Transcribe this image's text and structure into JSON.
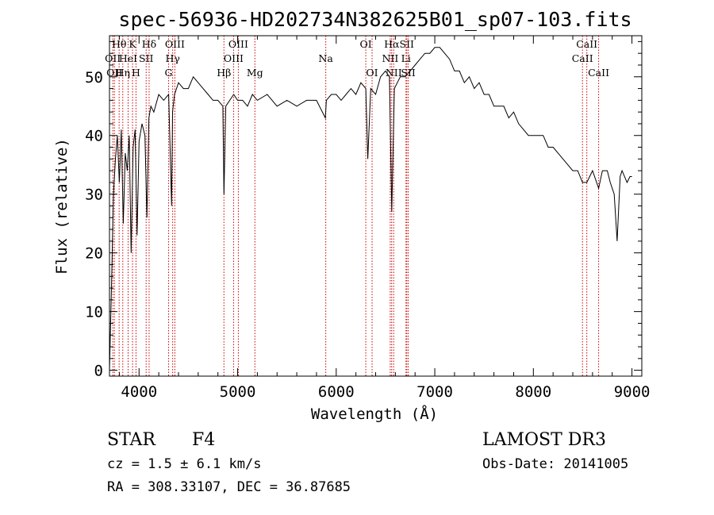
{
  "chart_data": {
    "type": "line",
    "title": "spec-56936-HD202734N382625B01_sp07-103.fits",
    "xlabel": "Wavelength (Å)",
    "ylabel": "Flux (relative)",
    "xlim": [
      3700,
      9100
    ],
    "ylim": [
      -1,
      57
    ],
    "xticks": [
      4000,
      5000,
      6000,
      7000,
      8000,
      9000
    ],
    "yticks": [
      0,
      10,
      20,
      30,
      40,
      50
    ],
    "grid": false,
    "series": [
      {
        "x": [
          3700,
          3720,
          3740,
          3760,
          3780,
          3800,
          3820,
          3840,
          3860,
          3880,
          3900,
          3920,
          3940,
          3960,
          3980,
          4000,
          4030,
          4060,
          4080,
          4100,
          4120,
          4150,
          4200,
          4250,
          4300,
          4330,
          4340,
          4360,
          4400,
          4450,
          4500,
          4550,
          4600,
          4650,
          4700,
          4750,
          4800,
          4850,
          4861,
          4880,
          4920,
          4960,
          5000,
          5050,
          5100,
          5150,
          5200,
          5300,
          5400,
          5500,
          5600,
          5700,
          5800,
          5890,
          5900,
          5950,
          6000,
          6050,
          6100,
          6150,
          6200,
          6250,
          6300,
          6320,
          6350,
          6400,
          6450,
          6500,
          6540,
          6563,
          6590,
          6620,
          6650,
          6700,
          6750,
          6800,
          6850,
          6900,
          6950,
          7000,
          7050,
          7100,
          7150,
          7200,
          7250,
          7300,
          7350,
          7400,
          7450,
          7500,
          7550,
          7600,
          7650,
          7700,
          7750,
          7800,
          7850,
          7900,
          7950,
          8000,
          8050,
          8100,
          8150,
          8200,
          8250,
          8300,
          8350,
          8400,
          8450,
          8498,
          8542,
          8600,
          8662,
          8700,
          8750,
          8780,
          8800,
          8820,
          8850,
          8880,
          8900,
          8950,
          8980,
          9000
        ],
        "values": [
          0,
          14,
          30,
          36,
          40,
          32,
          41,
          25,
          37,
          34,
          40,
          20,
          38,
          41,
          23,
          39,
          42,
          40,
          26,
          43,
          45,
          44,
          47,
          46,
          47,
          28,
          44,
          47,
          49,
          48,
          48,
          50,
          49,
          48,
          47,
          46,
          46,
          45,
          30,
          45,
          46,
          47,
          46,
          46,
          45,
          47,
          46,
          47,
          45,
          46,
          45,
          46,
          46,
          43,
          46,
          47,
          47,
          46,
          47,
          48,
          47,
          49,
          48,
          36,
          48,
          47,
          50,
          51,
          50,
          27,
          48,
          49,
          50,
          50,
          51,
          52,
          53,
          54,
          54,
          55,
          55,
          54,
          53,
          51,
          51,
          49,
          50,
          48,
          49,
          47,
          47,
          45,
          45,
          45,
          43,
          44,
          42,
          41,
          40,
          40,
          40,
          40,
          38,
          38,
          37,
          36,
          35,
          34,
          34,
          32,
          32,
          34,
          31,
          34,
          34,
          32,
          31,
          30,
          22,
          33,
          34,
          32,
          33,
          33
        ]
      }
    ],
    "markers": [
      {
        "x": 3734,
        "label": "OII",
        "row": 2
      },
      {
        "x": 3750,
        "label": "OII",
        "row": 3
      },
      {
        "x": 3798,
        "label": "Hθ",
        "row": 1
      },
      {
        "x": 3835,
        "label": "Hη",
        "row": 3
      },
      {
        "x": 3889,
        "label": "HeI",
        "row": 2
      },
      {
        "x": 3934,
        "label": "K",
        "row": 1
      },
      {
        "x": 3969,
        "label": "H",
        "row": 3
      },
      {
        "x": 4072,
        "label": "SII",
        "row": 2
      },
      {
        "x": 4102,
        "label": "Hδ",
        "row": 1
      },
      {
        "x": 4300,
        "label": "G",
        "row": 3
      },
      {
        "x": 4341,
        "label": "Hγ",
        "row": 2
      },
      {
        "x": 4363,
        "label": "OIII",
        "row": 1
      },
      {
        "x": 4861,
        "label": "Hβ",
        "row": 3
      },
      {
        "x": 4959,
        "label": "OIII",
        "row": 2
      },
      {
        "x": 5007,
        "label": "OIII",
        "row": 1
      },
      {
        "x": 5175,
        "label": "Mg",
        "row": 3
      },
      {
        "x": 5894,
        "label": "Na",
        "row": 2
      },
      {
        "x": 6300,
        "label": "OI",
        "row": 1
      },
      {
        "x": 6364,
        "label": "OI",
        "row": 3
      },
      {
        "x": 6548,
        "label": "NII",
        "row": 2
      },
      {
        "x": 6563,
        "label": "Hα",
        "row": 1
      },
      {
        "x": 6583,
        "label": "NII",
        "row": 3
      },
      {
        "x": 6708,
        "label": "Li",
        "row": 2
      },
      {
        "x": 6716,
        "label": "SII",
        "row": 1
      },
      {
        "x": 6731,
        "label": "SII",
        "row": 3
      },
      {
        "x": 8498,
        "label": "CaII",
        "row": 2
      },
      {
        "x": 8542,
        "label": "CaII",
        "row": 1
      },
      {
        "x": 8662,
        "label": "CaII",
        "row": 3
      }
    ],
    "colors": {
      "series": "#000000",
      "markers": "#cc0000"
    }
  },
  "info": {
    "object_class": "STAR",
    "subclass": "F4",
    "survey": "LAMOST DR3",
    "redshift": "cz = 1.5 ± 6.1 km/s",
    "obs_date": "Obs-Date: 20141005",
    "coords": "RA = 308.33107, DEC =  36.87685"
  }
}
